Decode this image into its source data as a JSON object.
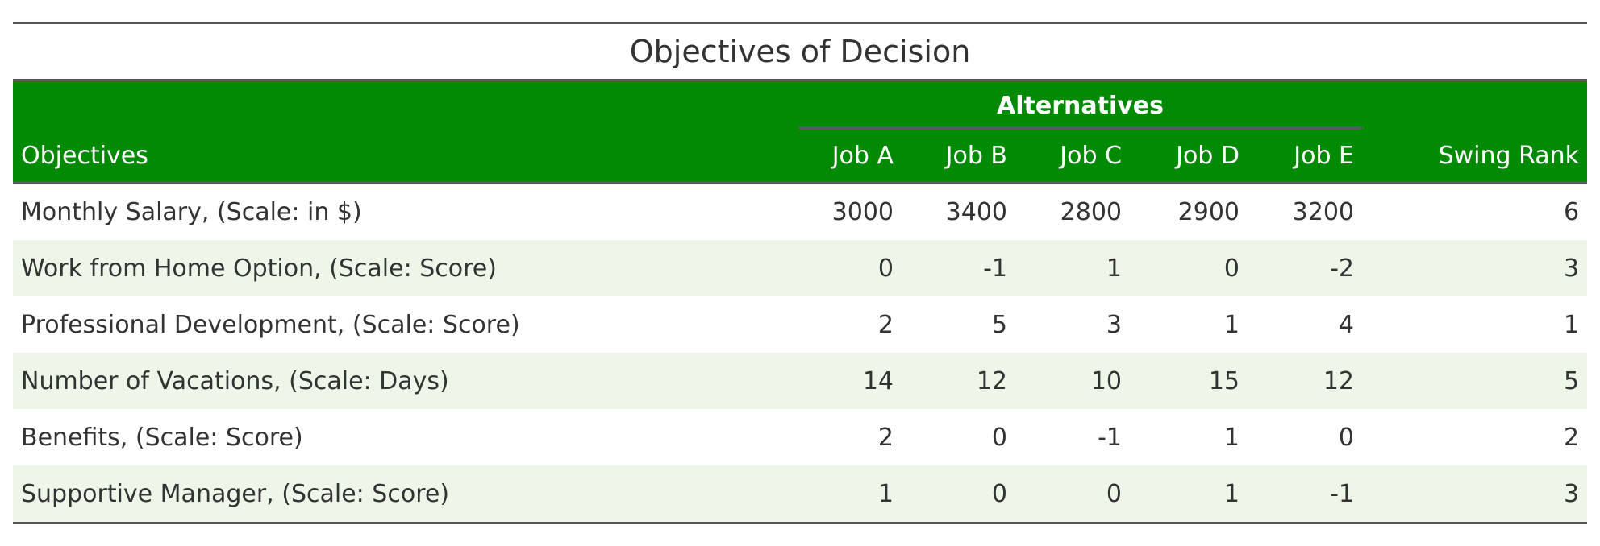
{
  "table": {
    "title": "Objectives of Decision",
    "spanner_label": "Alternatives",
    "columns": {
      "objectives": "Objectives",
      "jobs": [
        "Job A",
        "Job B",
        "Job C",
        "Job D",
        "Job E"
      ],
      "swing_rank": "Swing Rank"
    },
    "rows": [
      {
        "objective": "Monthly Salary, (Scale: in $)",
        "values": [
          "3000",
          "3400",
          "2800",
          "2900",
          "3200"
        ],
        "swing_rank": "6"
      },
      {
        "objective": "Work from Home Option, (Scale: Score)",
        "values": [
          "0",
          "-1",
          "1",
          "0",
          "-2"
        ],
        "swing_rank": "3"
      },
      {
        "objective": "Professional Development, (Scale: Score)",
        "values": [
          "2",
          "5",
          "3",
          "1",
          "4"
        ],
        "swing_rank": "1"
      },
      {
        "objective": "Number of Vacations, (Scale: Days)",
        "values": [
          "14",
          "12",
          "10",
          "15",
          "12"
        ],
        "swing_rank": "5"
      },
      {
        "objective": "Benefits, (Scale: Score)",
        "values": [
          "2",
          "0",
          "-1",
          "1",
          "0"
        ],
        "swing_rank": "2"
      },
      {
        "objective": "Supportive Manager, (Scale: Score)",
        "values": [
          "1",
          "0",
          "0",
          "1",
          "-1"
        ],
        "swing_rank": "3"
      }
    ],
    "colors": {
      "header_bg": "#028a05",
      "header_text": "#ffffff",
      "stripe_bg": "#eef6ea",
      "rule": "#5a5a5a"
    }
  }
}
